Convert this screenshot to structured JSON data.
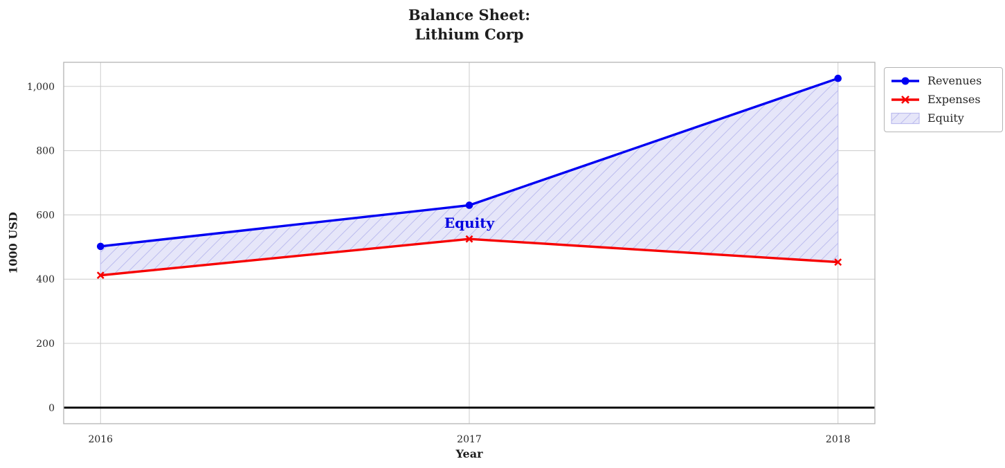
{
  "chart_data": {
    "type": "line",
    "title": "Balance Sheet:\nLithium Corp",
    "xlabel": "Year",
    "ylabel": "1000 USD",
    "x": [
      2016,
      2017,
      2018
    ],
    "xtick_labels": [
      "2016",
      "2017",
      "2018"
    ],
    "ytick_values": [
      0,
      200,
      400,
      600,
      800,
      1000
    ],
    "ytick_labels": [
      "0",
      "200",
      "400",
      "600",
      "800",
      "1,000"
    ],
    "xlim": [
      2015.9,
      2018.1
    ],
    "ylim": [
      -50,
      1075
    ],
    "grid": true,
    "zero_line": {
      "value": 0,
      "color": "#000000"
    },
    "series": [
      {
        "name": "Revenues",
        "marker": "circle",
        "color": "#0000f2",
        "values": [
          502,
          630,
          1025
        ]
      },
      {
        "name": "Expenses",
        "marker": "x",
        "color": "#f70000",
        "values": [
          412,
          525,
          453
        ]
      }
    ],
    "area": {
      "name": "Equity",
      "between": [
        "Revenues",
        "Expenses"
      ],
      "fill_color": "#e6e6f9",
      "hatch_color": "#bcbcee",
      "hatch_style": "/"
    },
    "annotation": {
      "text": "Equity",
      "x": 2017,
      "y": 575,
      "color": "#0000e0"
    },
    "legend": {
      "location": "upper right, outside plot",
      "entries": [
        "Revenues",
        "Expenses",
        "Equity"
      ]
    }
  },
  "styles": {
    "grid_color": "#cccccc",
    "spine_color": "#b4b4b4",
    "tick_text_color": "#262626"
  }
}
